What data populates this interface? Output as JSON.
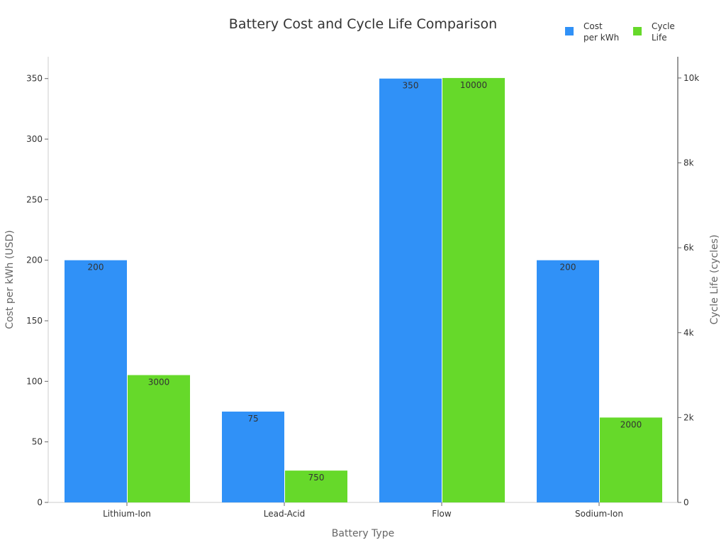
{
  "chart_data": {
    "type": "bar",
    "title": "Battery Cost and Cycle Life Comparison",
    "xlabel": "Battery Type",
    "ylabel": "Cost per kWh (USD)",
    "y2label": "Cycle Life (cycles)",
    "categories": [
      "Lithium-Ion",
      "Lead-Acid",
      "Flow",
      "Sodium-Ion"
    ],
    "series": [
      {
        "name": "Cost per kWh",
        "legend_lines": [
          "Cost",
          "per kWh"
        ],
        "axis": "left",
        "color": "#3091f7",
        "values": [
          200,
          75,
          350,
          200
        ]
      },
      {
        "name": "Cycle Life",
        "legend_lines": [
          "Cycle",
          "Life"
        ],
        "axis": "right",
        "color": "#66d92a",
        "values": [
          3000,
          750,
          10000,
          2000
        ]
      }
    ],
    "ylim": [
      0,
      368
    ],
    "y2lim": [
      0,
      10500
    ],
    "yticks": [
      0,
      50,
      100,
      150,
      200,
      250,
      300,
      350
    ],
    "y2ticks": [
      0,
      2000,
      4000,
      6000,
      8000,
      10000
    ],
    "y2ticklabels": [
      "0",
      "2k",
      "4k",
      "6k",
      "8k",
      "10k"
    ],
    "grid": false,
    "legend_position": "top-right"
  }
}
